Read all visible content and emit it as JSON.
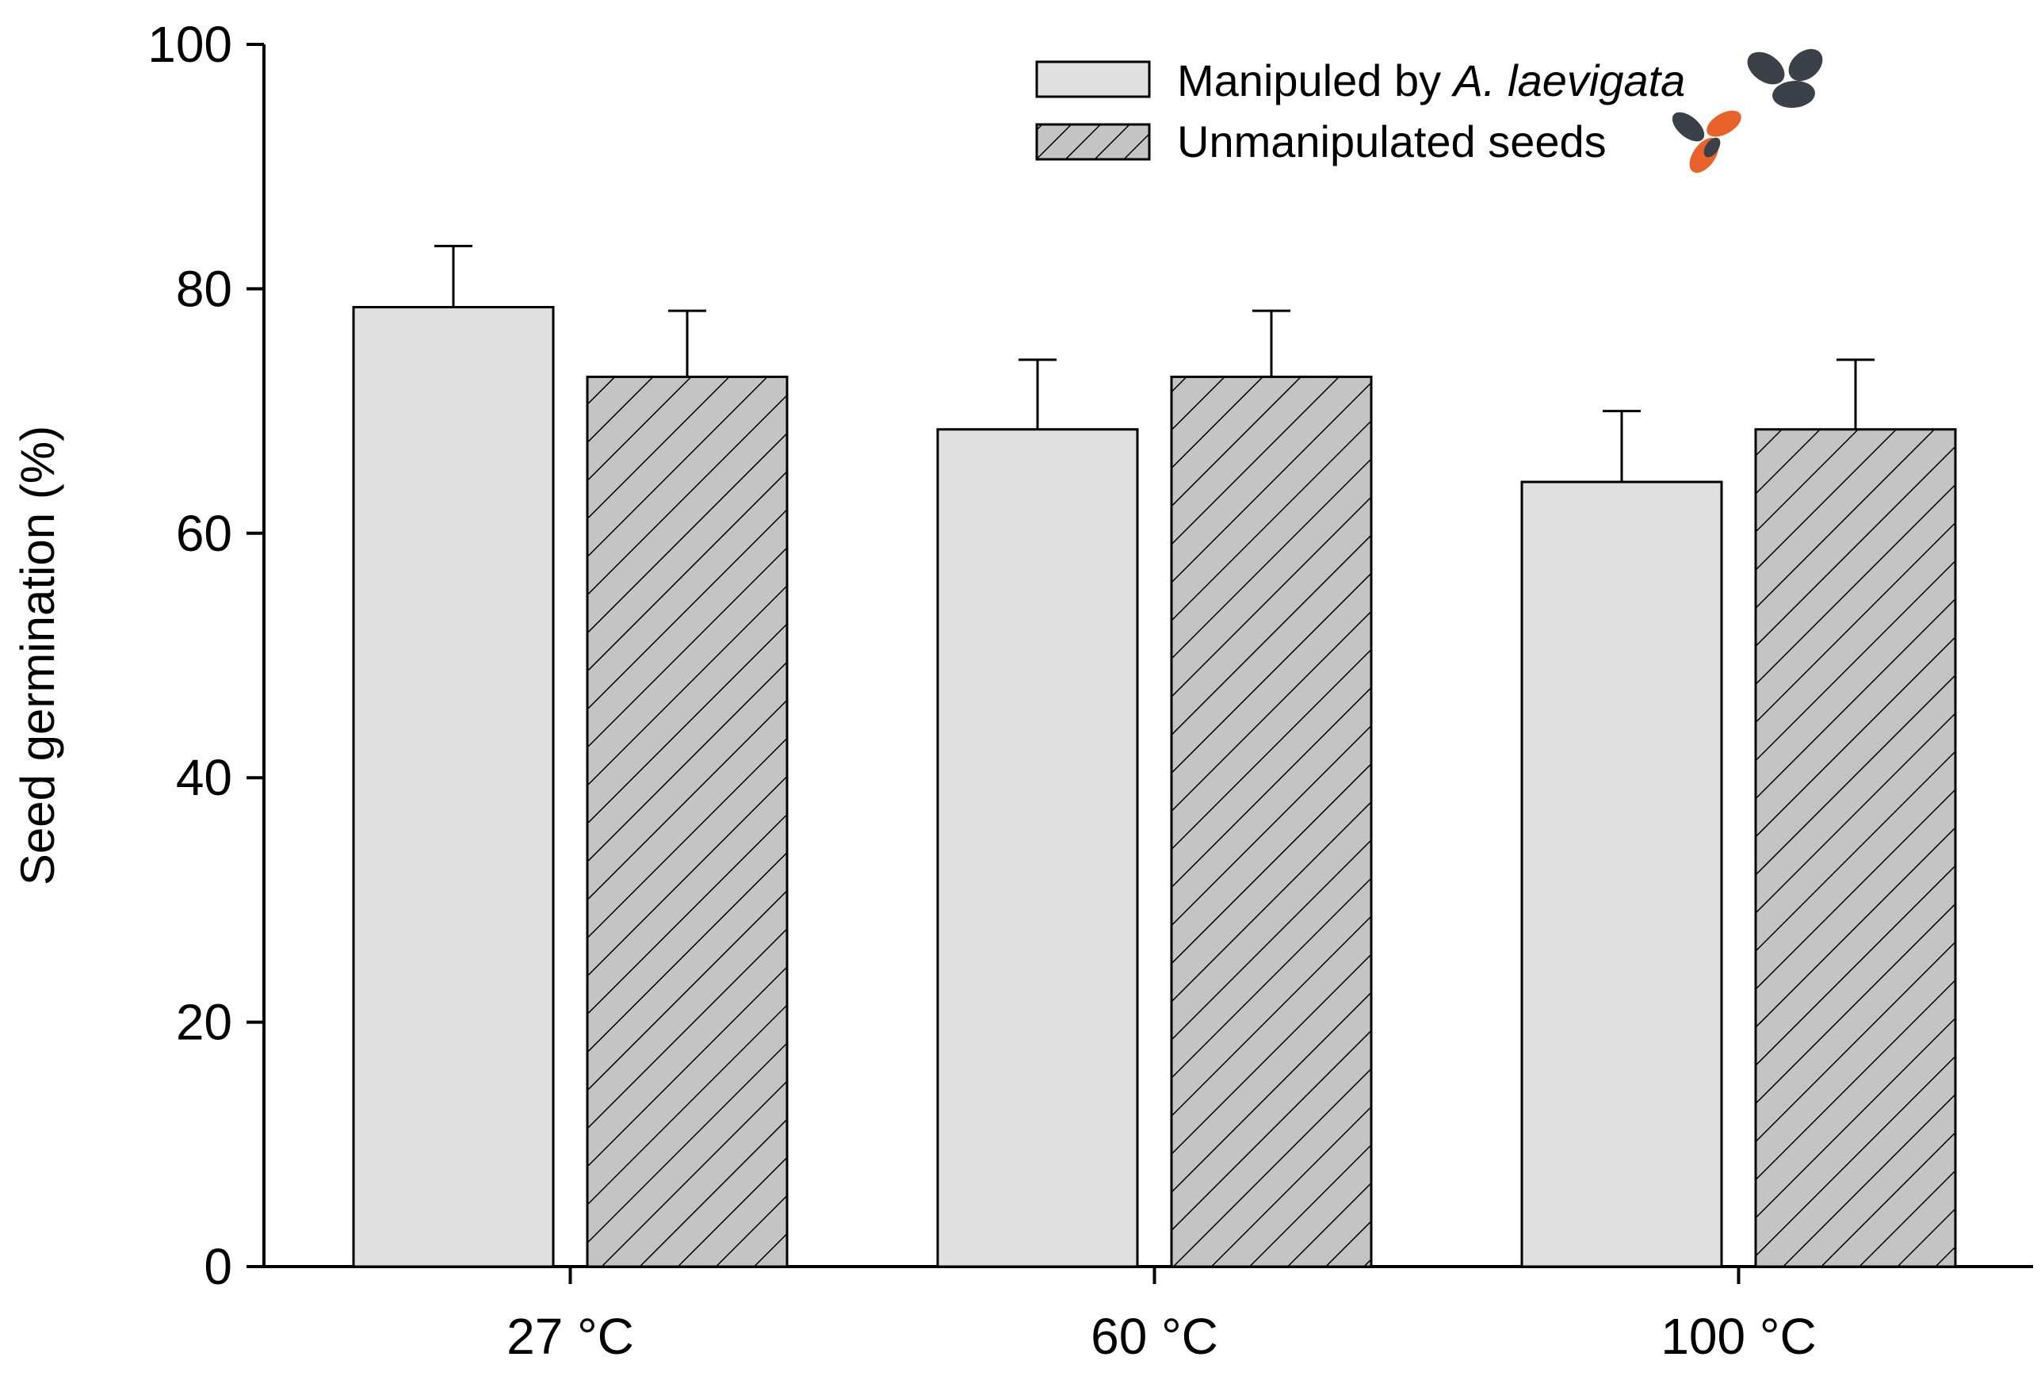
{
  "chart_data": {
    "type": "bar",
    "title": "",
    "xlabel": "",
    "ylabel": "Seed germination (%)",
    "ylim": [
      0,
      100
    ],
    "yticks": [
      0,
      20,
      40,
      60,
      80,
      100
    ],
    "grid": false,
    "legend_position": "top-right",
    "categories": [
      "27 °C",
      "60 °C",
      "100 °C"
    ],
    "series": [
      {
        "name_prefix": "Manipuled by ",
        "name_italic": "A. laevigata",
        "fill": "#e0e0e0",
        "pattern": "solid",
        "values": [
          78.5,
          68.5,
          64.2
        ],
        "errors": [
          5.0,
          5.7,
          5.8
        ]
      },
      {
        "name_prefix": "Unmanipulated seeds",
        "name_italic": "",
        "fill": "#c4c4c4",
        "pattern": "hatched",
        "values": [
          72.8,
          72.8,
          68.5
        ],
        "errors": [
          5.4,
          5.4,
          5.7
        ]
      }
    ]
  },
  "colors": {
    "axis": "#000000",
    "bar_stroke": "#000000",
    "seed_dark": "#3c4048",
    "seed_orange": "#e8632a"
  }
}
